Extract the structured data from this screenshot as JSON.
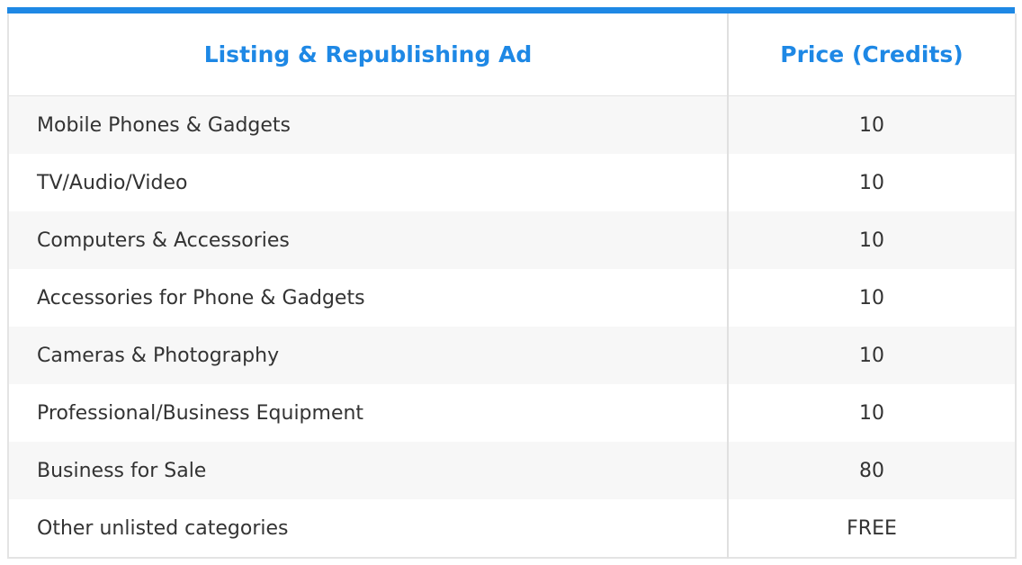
{
  "table": {
    "accent_color": "#1e88e5",
    "headers": [
      "Listing & Republishing Ad",
      "Price (Credits)"
    ],
    "rows": [
      {
        "category": "Mobile Phones & Gadgets",
        "price": "10"
      },
      {
        "category": "TV/Audio/Video",
        "price": "10"
      },
      {
        "category": "Computers & Accessories",
        "price": "10"
      },
      {
        "category": "Accessories for Phone & Gadgets",
        "price": "10"
      },
      {
        "category": "Cameras & Photography",
        "price": "10"
      },
      {
        "category": "Professional/Business Equipment",
        "price": "10"
      },
      {
        "category": "Business for Sale",
        "price": "80"
      },
      {
        "category": "Other unlisted categories",
        "price": "FREE"
      }
    ]
  }
}
